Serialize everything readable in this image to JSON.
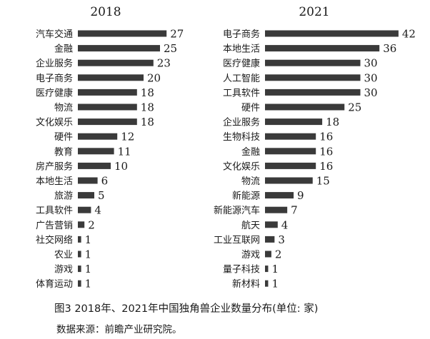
{
  "caption": "图3  2018年、2021年中国独角兽企业数量分布(单位: 家)",
  "source": "数据来源：前瞻产业研究院。",
  "chart_data": [
    {
      "type": "bar",
      "orientation": "horizontal",
      "title": "2018",
      "categories": [
        "汽车交通",
        "金融",
        "企业服务",
        "电子商务",
        "医疗健康",
        "物流",
        "文化娱乐",
        "硬件",
        "教育",
        "房产服务",
        "本地生活",
        "旅游",
        "工具软件",
        "广告营销",
        "社交网络",
        "农业",
        "游戏",
        "体育运动"
      ],
      "values": [
        27,
        25,
        23,
        20,
        18,
        18,
        18,
        12,
        11,
        10,
        6,
        5,
        4,
        2,
        1,
        1,
        1,
        1
      ],
      "bar_color": "#3a3a3a"
    },
    {
      "type": "bar",
      "orientation": "horizontal",
      "title": "2021",
      "categories": [
        "电子商务",
        "本地生活",
        "医疗健康",
        "人工智能",
        "工具软件",
        "硬件",
        "企业服务",
        "生物科技",
        "金融",
        "文化娱乐",
        "物流",
        "新能源",
        "新能源汽车",
        "航天",
        "工业互联网",
        "游戏",
        "量子科技",
        "新材料"
      ],
      "values": [
        42,
        36,
        30,
        30,
        30,
        25,
        18,
        16,
        16,
        16,
        15,
        9,
        7,
        4,
        3,
        2,
        1,
        1
      ],
      "bar_color": "#3a3a3a"
    }
  ]
}
